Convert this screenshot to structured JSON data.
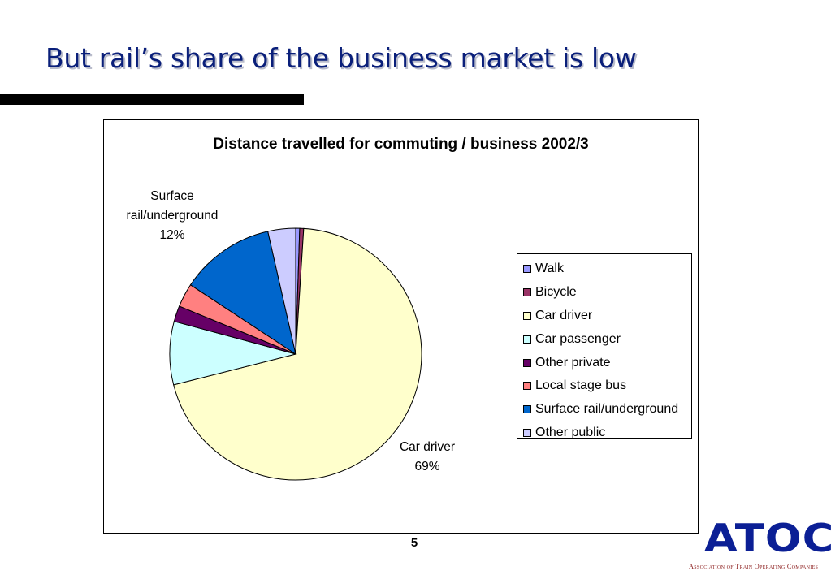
{
  "slide": {
    "title": "But rail’s share of the business market is low",
    "page_number": "5"
  },
  "logo": {
    "wordmark": "ATOC",
    "tagline": "Association of Train Operating Companies",
    "color": "#0b1f95"
  },
  "chart_data": {
    "type": "pie",
    "title": "Distance travelled for commuting / business 2002/3",
    "start_angle_deg": 0,
    "direction": "clockwise",
    "slices": [
      {
        "name": "Walk",
        "value": 0.5,
        "color": "#9999ff"
      },
      {
        "name": "Bicycle",
        "value": 0.5,
        "color": "#993366"
      },
      {
        "name": "Car driver",
        "value": 69,
        "color": "#ffffcc"
      },
      {
        "name": "Car passenger",
        "value": 8,
        "color": "#ccffff"
      },
      {
        "name": "Other private",
        "value": 2,
        "color": "#660066"
      },
      {
        "name": "Local stage bus",
        "value": 3,
        "color": "#ff8080"
      },
      {
        "name": "Surface rail/underground",
        "value": 12,
        "color": "#0066cc"
      },
      {
        "name": "Other public",
        "value": 3.5,
        "color": "#ccccff"
      }
    ],
    "data_labels": [
      {
        "lines": [
          "Surface",
          "rail/underground",
          "12%"
        ]
      },
      {
        "lines": [
          "Car driver",
          "69%"
        ]
      }
    ],
    "legend_position": "right",
    "grid": false
  }
}
